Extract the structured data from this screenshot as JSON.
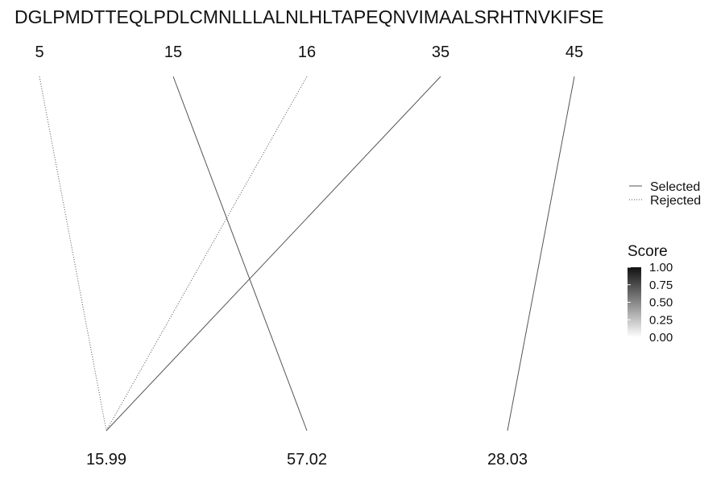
{
  "sequence": "DGLPMDTTEQLPDLCMNLLLALNLHLTAPEQNVIMAALSRHTNVKIFSE",
  "positions": [
    "5",
    "15",
    "16",
    "35",
    "45"
  ],
  "masses": [
    "15.99",
    "57.02",
    "28.03"
  ],
  "links": [
    {
      "position": "5",
      "mass": "15.99",
      "status": "Rejected"
    },
    {
      "position": "15",
      "mass": "57.02",
      "status": "Selected"
    },
    {
      "position": "16",
      "mass": "15.99",
      "status": "Rejected"
    },
    {
      "position": "35",
      "mass": "15.99",
      "status": "Selected"
    },
    {
      "position": "45",
      "mass": "28.03",
      "status": "Selected"
    }
  ],
  "legend": {
    "linetype": [
      {
        "label": "Selected",
        "style": "solid"
      },
      {
        "label": "Rejected",
        "style": "dotted"
      }
    ],
    "score": {
      "title": "Score",
      "ticks": [
        "1.00",
        "0.75",
        "0.50",
        "0.25",
        "0.00"
      ],
      "color_high": "#111111",
      "color_low": "#ffffff"
    }
  },
  "colors": {
    "line": "#555555",
    "text": "#111111"
  }
}
